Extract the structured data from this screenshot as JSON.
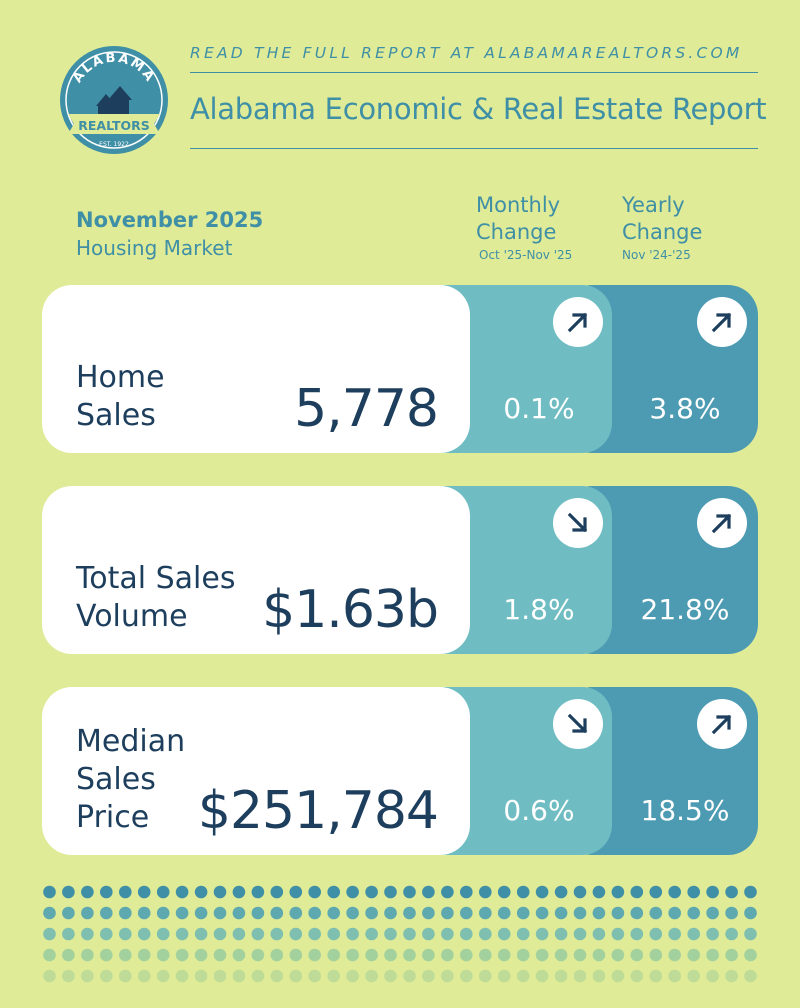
{
  "header": {
    "tagline": "READ THE FULL REPORT AT ALABAMAREALTORS.COM",
    "title": "Alabama Economic & Real Estate Report"
  },
  "logo": {
    "top_text": "ALABAMA",
    "banner_text": "REALTORS",
    "est_text": "EST. 1922"
  },
  "period": {
    "month": "November 2025",
    "subtitle": "Housing Market"
  },
  "columns": {
    "monthly": {
      "line1": "Monthly",
      "line2": "Change",
      "range": "Oct '25-Nov '25"
    },
    "yearly": {
      "line1": "Yearly",
      "line2": "Change",
      "range": "Nov '24-'25"
    }
  },
  "metrics": [
    {
      "label_lines": [
        "Home",
        "Sales"
      ],
      "value": "5,778",
      "monthly": "0.1%",
      "monthly_dir": "up",
      "yearly": "3.8%",
      "yearly_dir": "up"
    },
    {
      "label_lines": [
        "Total Sales",
        "Volume"
      ],
      "value": "$1.63b",
      "monthly": "1.8%",
      "monthly_dir": "down",
      "yearly": "21.8%",
      "yearly_dir": "up"
    },
    {
      "label_lines": [
        "Median",
        "Sales",
        "Price"
      ],
      "value": "$251,784",
      "monthly": "0.6%",
      "monthly_dir": "down",
      "yearly": "18.5%",
      "yearly_dir": "up"
    }
  ],
  "colors": {
    "background": "#dfeb96",
    "navy": "#1d3e5c",
    "teal": "#3f8fa6",
    "monthly_panel": "#6fbdc2",
    "yearly_panel": "#4c9bb3"
  }
}
